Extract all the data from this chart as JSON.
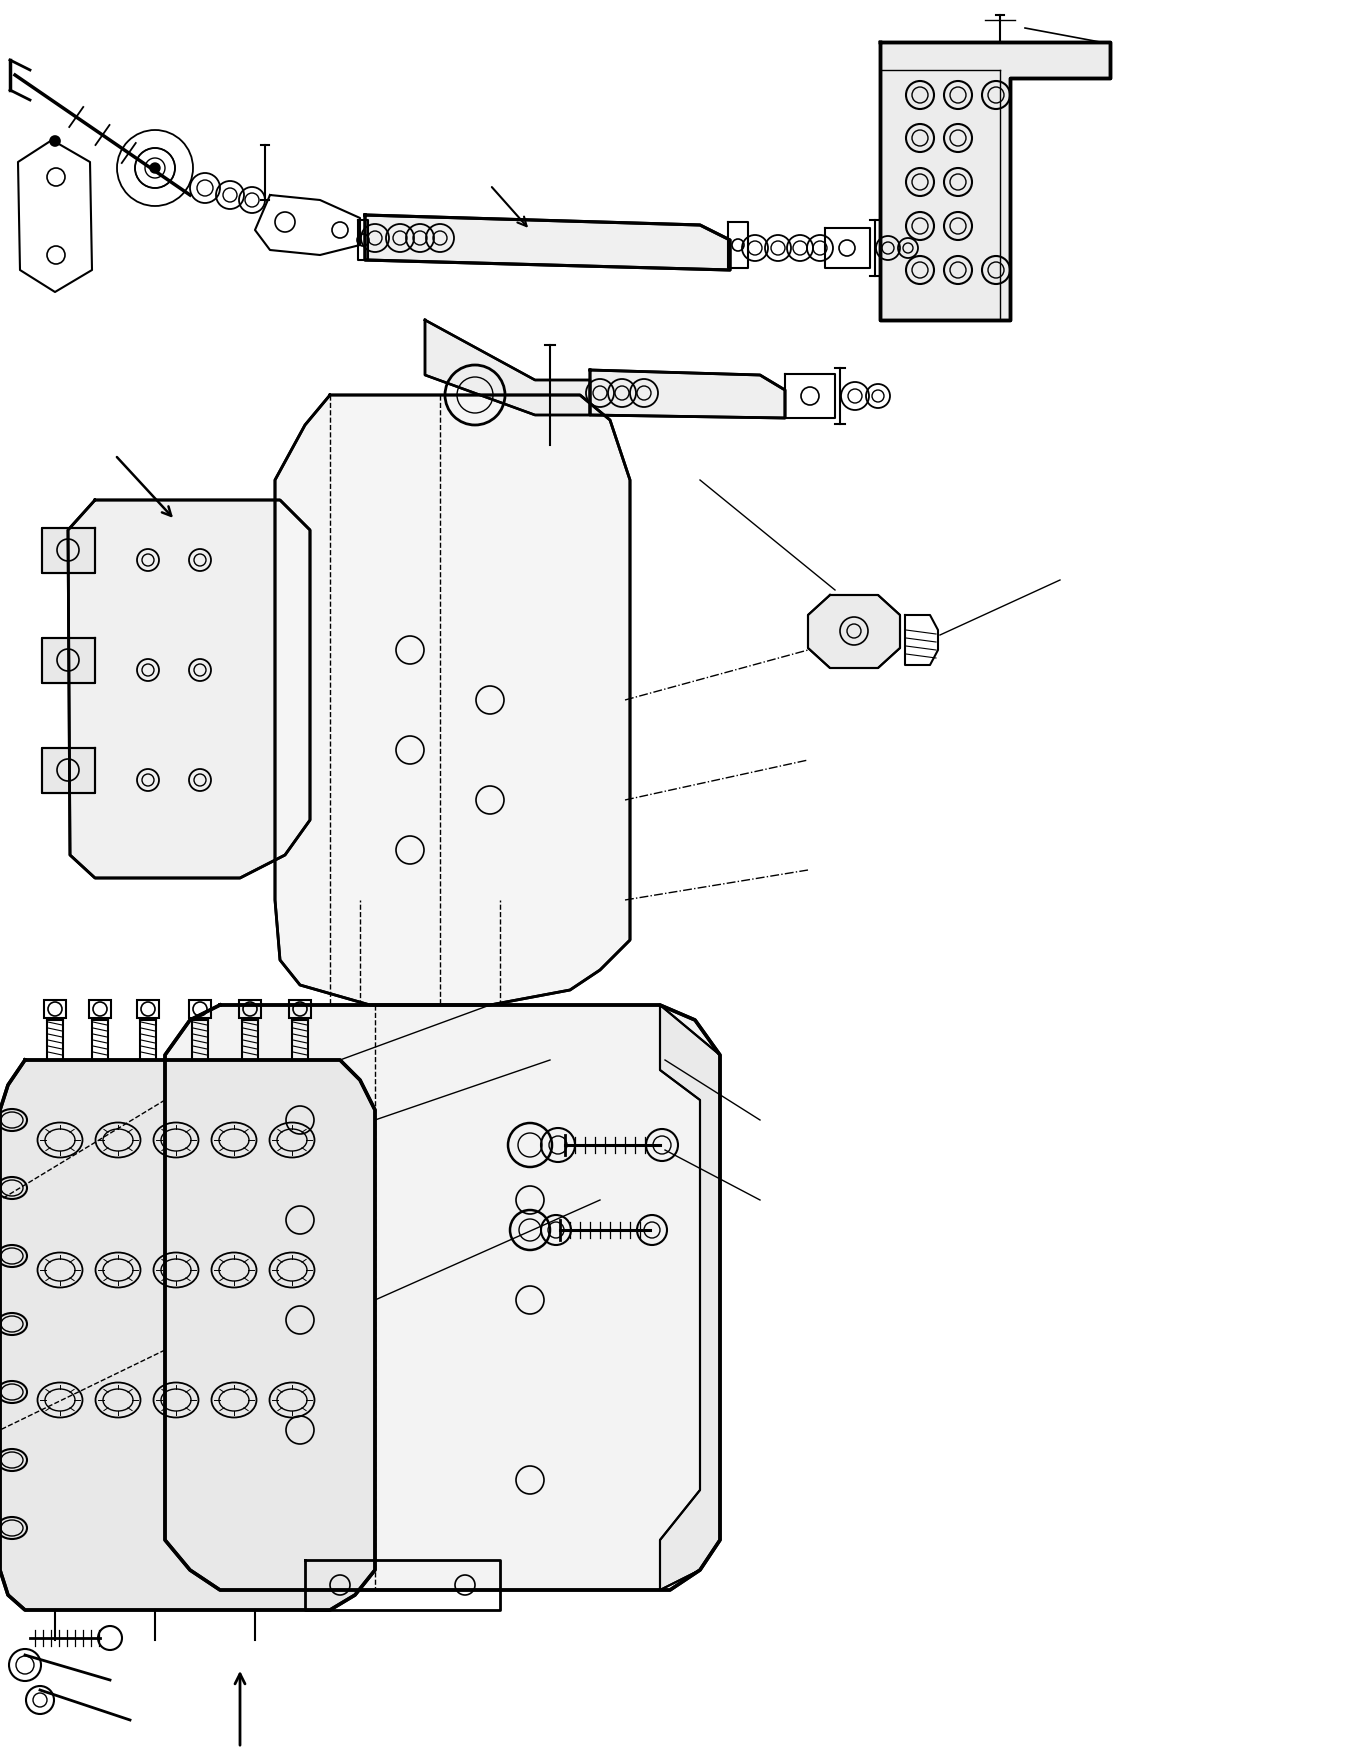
{
  "bg_color": "#ffffff",
  "line_color": "#000000",
  "figsize": [
    13.52,
    17.48
  ],
  "dpi": 100
}
